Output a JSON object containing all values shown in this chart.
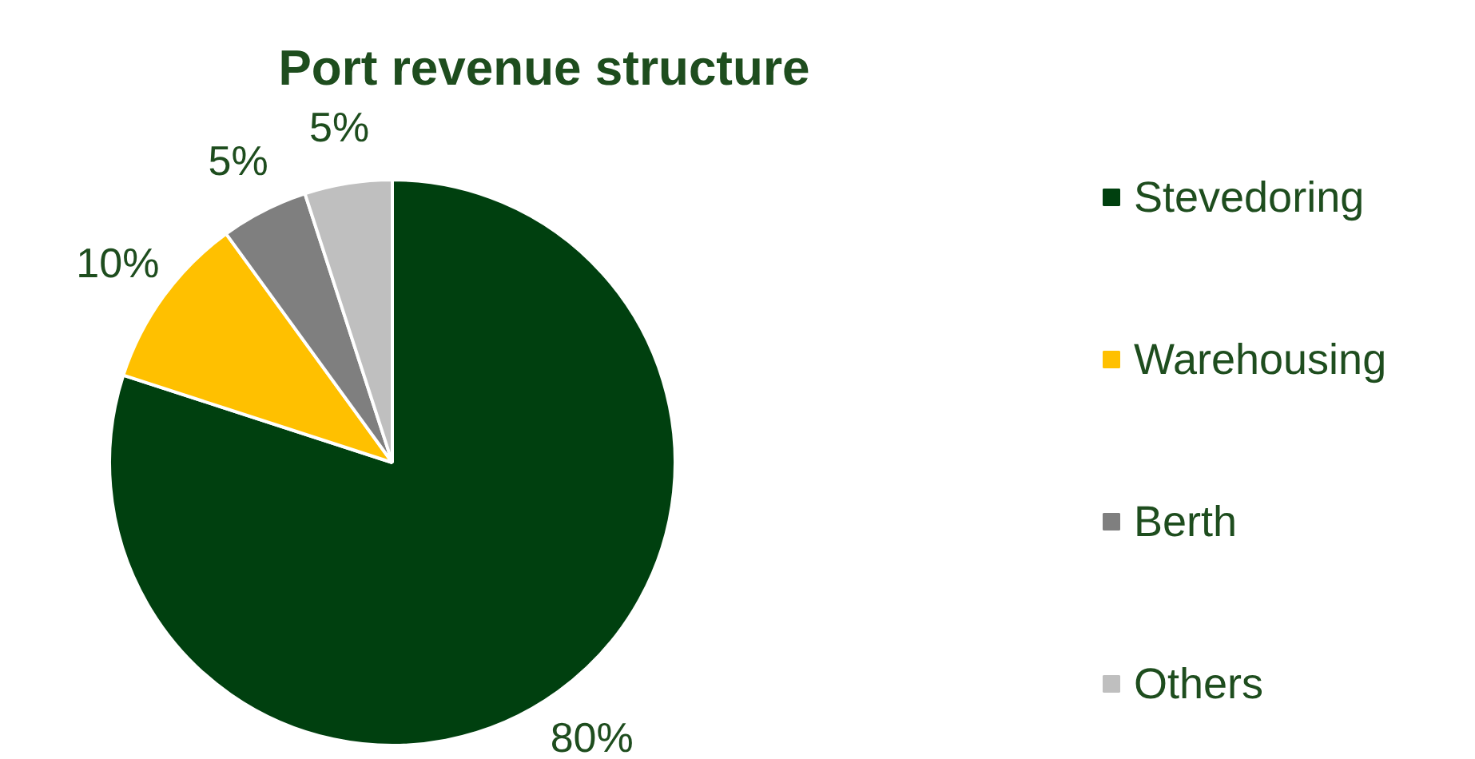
{
  "chart_data": {
    "type": "pie",
    "title": "Port revenue structure",
    "categories": [
      "Stevedoring",
      "Warehousing",
      "Berth",
      "Others"
    ],
    "values": [
      80,
      10,
      5,
      5
    ],
    "colors": [
      "#00400f",
      "#ffc000",
      "#7f7f7f",
      "#bfbfbf"
    ],
    "value_labels": [
      "80%",
      "10%",
      "5%",
      "5%"
    ],
    "legend": "right"
  }
}
